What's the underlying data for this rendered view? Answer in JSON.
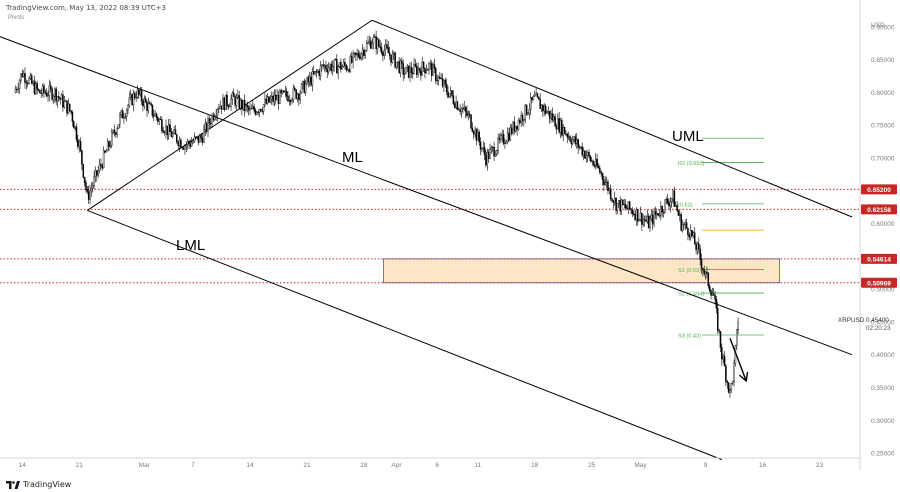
{
  "header": {
    "source": "TradingView.com, May 13, 2022 08:39 UTC+3",
    "indicator": "Pivots"
  },
  "footer": {
    "brand": "TradingView"
  },
  "colors": {
    "candle": "#000000",
    "line": "#000000",
    "hline": "#c62828",
    "zone_fill": "#fde6c6",
    "zone_border": "#4a5aa8",
    "pivot": "#4caf50",
    "pivot_pp": "#ff9800",
    "price_badge": "#c62828",
    "axis_text": "#7a7a7a"
  },
  "chart_data": {
    "type": "candlestick",
    "symbol": "XRPUSD",
    "currency": "USD",
    "last_price": "0.45400",
    "countdown": "02:20:23",
    "ylim": [
      0.24,
      0.92
    ],
    "y_ticks": [
      "0.25000",
      "0.30000",
      "0.35000",
      "0.40000",
      "0.45000",
      "0.50000",
      "0.55000",
      "0.60000",
      "0.65000",
      "0.70000",
      "0.75000",
      "0.80000",
      "0.85000",
      "0.90000"
    ],
    "x_ticks": [
      {
        "label": "14",
        "date": "2022-02-14"
      },
      {
        "label": "21",
        "date": "2022-02-21"
      },
      {
        "label": "Mar",
        "date": "2022-03-01"
      },
      {
        "label": "7",
        "date": "2022-03-07"
      },
      {
        "label": "14",
        "date": "2022-03-14"
      },
      {
        "label": "21",
        "date": "2022-03-21"
      },
      {
        "label": "28",
        "date": "2022-03-28"
      },
      {
        "label": "Apr",
        "date": "2022-04-01"
      },
      {
        "label": "6",
        "date": "2022-04-06"
      },
      {
        "label": "11",
        "date": "2022-04-11"
      },
      {
        "label": "18",
        "date": "2022-04-18"
      },
      {
        "label": "25",
        "date": "2022-04-25"
      },
      {
        "label": "May",
        "date": "2022-05-01"
      },
      {
        "label": "9",
        "date": "2022-05-09"
      },
      {
        "label": "16",
        "date": "2022-05-16"
      },
      {
        "label": "23",
        "date": "2022-05-23"
      }
    ],
    "price_path": [
      [
        "2022-02-13",
        0.8
      ],
      [
        "2022-02-14",
        0.83
      ],
      [
        "2022-02-16",
        0.8
      ],
      [
        "2022-02-18",
        0.8
      ],
      [
        "2022-02-20",
        0.77
      ],
      [
        "2022-02-21",
        0.72
      ],
      [
        "2022-02-22",
        0.64
      ],
      [
        "2022-02-24",
        0.7
      ],
      [
        "2022-02-26",
        0.76
      ],
      [
        "2022-02-28",
        0.8
      ],
      [
        "2022-03-02",
        0.77
      ],
      [
        "2022-03-04",
        0.74
      ],
      [
        "2022-03-06",
        0.72
      ],
      [
        "2022-03-08",
        0.73
      ],
      [
        "2022-03-10",
        0.78
      ],
      [
        "2022-03-12",
        0.79
      ],
      [
        "2022-03-14",
        0.77
      ],
      [
        "2022-03-17",
        0.79
      ],
      [
        "2022-03-20",
        0.8
      ],
      [
        "2022-03-23",
        0.84
      ],
      [
        "2022-03-26",
        0.84
      ],
      [
        "2022-03-29",
        0.88
      ],
      [
        "2022-03-31",
        0.86
      ],
      [
        "2022-04-02",
        0.83
      ],
      [
        "2022-04-05",
        0.84
      ],
      [
        "2022-04-08",
        0.79
      ],
      [
        "2022-04-10",
        0.76
      ],
      [
        "2022-04-12",
        0.7
      ],
      [
        "2022-04-15",
        0.74
      ],
      [
        "2022-04-18",
        0.79
      ],
      [
        "2022-04-21",
        0.75
      ],
      [
        "2022-04-24",
        0.71
      ],
      [
        "2022-04-26",
        0.68
      ],
      [
        "2022-04-28",
        0.63
      ],
      [
        "2022-04-30",
        0.62
      ],
      [
        "2022-05-02",
        0.6
      ],
      [
        "2022-05-04",
        0.63
      ],
      [
        "2022-05-05",
        0.64
      ],
      [
        "2022-05-06",
        0.6
      ],
      [
        "2022-05-07",
        0.59
      ],
      [
        "2022-05-08",
        0.56
      ],
      [
        "2022-05-09",
        0.52
      ],
      [
        "2022-05-10",
        0.49
      ],
      [
        "2022-05-11",
        0.4
      ],
      [
        "2022-05-12",
        0.34
      ],
      [
        "2022-05-12T12",
        0.38
      ],
      [
        "2022-05-13",
        0.454
      ]
    ],
    "horizontal_levels": [
      {
        "label": "0.65200",
        "value": 0.652
      },
      {
        "label": "0.62158",
        "value": 0.62158
      },
      {
        "label": "0.54614",
        "value": 0.54614
      },
      {
        "label": "0.50969",
        "value": 0.50969
      }
    ],
    "zone": {
      "from_date": "2022-04-01",
      "to_date": "2022-05-16",
      "low": 0.50969,
      "high": 0.54614
    },
    "pivots": [
      {
        "label": "",
        "value": 0.73
      },
      {
        "label": "R2 (0.693)",
        "value": 0.693
      },
      {
        "label": "(0.63)",
        "value": 0.63
      },
      {
        "label": "",
        "value": 0.59
      },
      {
        "label": "S1 (0.53)",
        "value": 0.53
      },
      {
        "label": "S2 (0.494)",
        "value": 0.494
      },
      {
        "label": "S3 (0.43)",
        "value": 0.43
      }
    ],
    "pitchfork": {
      "labels": {
        "upper": "UML",
        "median": "ML",
        "lower": "LML"
      },
      "pivot_a": [
        "2022-02-22",
        0.62
      ],
      "pivot_b": [
        "2022-03-29",
        0.91
      ],
      "median_start": [
        "2022-02-08",
        0.9
      ],
      "median_end": [
        "2022-05-27",
        0.4
      ],
      "upper_end": [
        "2022-05-27",
        0.61
      ],
      "lower_end": [
        "2022-05-11",
        0.24
      ]
    },
    "projection_arrow": {
      "from": [
        "2022-05-12",
        0.425
      ],
      "to": [
        "2022-05-14",
        0.36
      ]
    }
  }
}
